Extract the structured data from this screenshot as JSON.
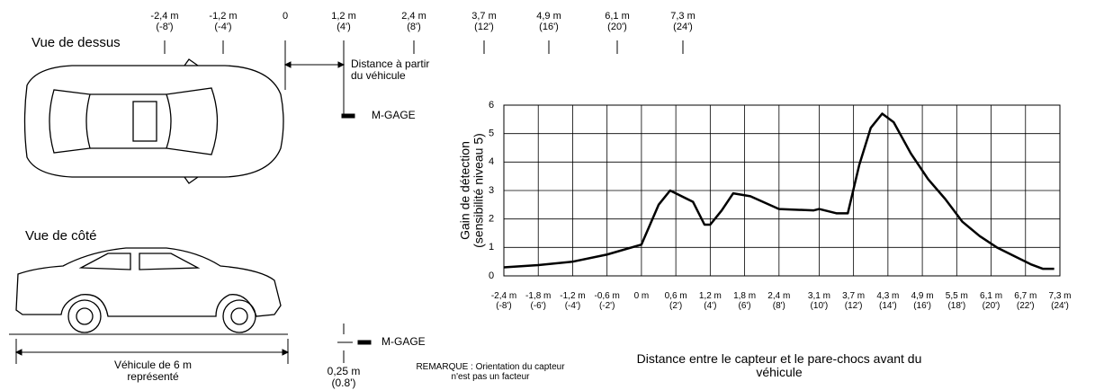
{
  "diagram": {
    "top_view_title": "Vue de dessus",
    "side_view_title": "Vue de côté",
    "distance_note": "Distance à partir\ndu véhicule",
    "sensor_top": "M-GAGE",
    "sensor_side": "M-GAGE",
    "vehicle_note": "Véhicule de 6 m\nreprésenté",
    "height_note": "0,25 m\n(0.8')",
    "remark": "REMARQUE : Orientation du capteur\nn'est pas un facteur",
    "top_scale": [
      "-2,4 m\n(-8')",
      "-1,2 m\n(-4')",
      "0",
      "1,2 m\n(4')",
      "2,4 m\n(8')",
      "3,7 m\n(12')",
      "4,9 m\n(16')",
      "6,1 m\n(20')",
      "7,3 m\n(24')"
    ]
  },
  "chart_data": {
    "type": "line",
    "y_label": "Gain de détection\n(sensibilité niveau 5)",
    "x_label": "Distance entre le capteur et le pare-chocs avant du véhicule",
    "color": "#000000",
    "grid": true,
    "x": [
      -2.4,
      -1.8,
      -1.2,
      -0.6,
      0,
      0.3,
      0.5,
      0.9,
      1.1,
      1.2,
      1.4,
      1.6,
      1.9,
      2.4,
      3.0,
      3.1,
      3.4,
      3.6,
      3.8,
      4.0,
      4.2,
      4.4,
      4.7,
      5.0,
      5.3,
      5.6,
      5.9,
      6.2,
      6.5,
      6.8,
      7.0,
      7.2
    ],
    "values": [
      0.3,
      0.38,
      0.5,
      0.75,
      1.1,
      2.5,
      3.0,
      2.6,
      1.8,
      1.8,
      2.3,
      2.9,
      2.8,
      2.35,
      2.3,
      2.35,
      2.2,
      2.2,
      3.9,
      5.2,
      5.7,
      5.4,
      4.3,
      3.4,
      2.7,
      1.9,
      1.4,
      1.0,
      0.7,
      0.4,
      0.25,
      0.25
    ],
    "xlim": [
      -2.4,
      7.3
    ],
    "ylim": [
      0,
      6
    ],
    "yticks": [
      0,
      1,
      2,
      3,
      4,
      5,
      6
    ],
    "xticks": [
      {
        "value": -2.4,
        "label": "-2,4 m\n(-8')"
      },
      {
        "value": -1.8,
        "label": "-1,8 m\n(-6')"
      },
      {
        "value": -1.2,
        "label": "-1,2 m\n(-4')"
      },
      {
        "value": -0.6,
        "label": "-0,6 m\n(-2')"
      },
      {
        "value": 0,
        "label": "0 m"
      },
      {
        "value": 0.6,
        "label": "0,6 m\n(2')"
      },
      {
        "value": 1.2,
        "label": "1,2 m\n(4')"
      },
      {
        "value": 1.8,
        "label": "1,8 m\n(6')"
      },
      {
        "value": 2.4,
        "label": "2,4 m\n(8')"
      },
      {
        "value": 3.1,
        "label": "3,1 m\n(10')"
      },
      {
        "value": 3.7,
        "label": "3,7 m\n(12')"
      },
      {
        "value": 4.3,
        "label": "4,3 m\n(14')"
      },
      {
        "value": 4.9,
        "label": "4,9 m\n(16')"
      },
      {
        "value": 5.5,
        "label": "5,5 m\n(18')"
      },
      {
        "value": 6.1,
        "label": "6,1 m\n(20')"
      },
      {
        "value": 6.7,
        "label": "6,7 m\n(22')"
      },
      {
        "value": 7.3,
        "label": "7,3 m\n(24')"
      }
    ]
  }
}
